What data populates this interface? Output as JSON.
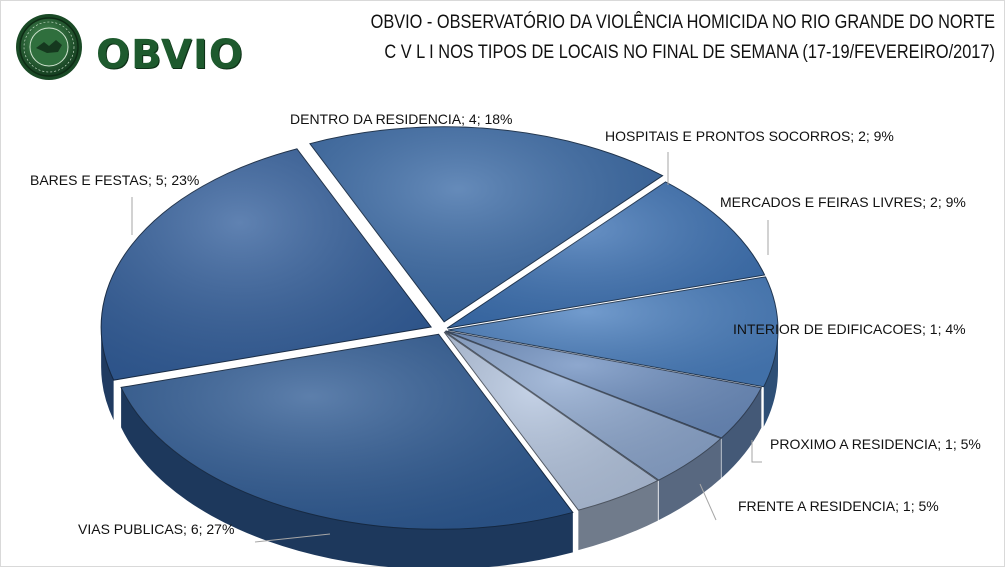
{
  "header": {
    "logo_text": "OBVIO",
    "title_line1": "OBVIO - OBSERVATÓRIO DA VIOLÊNCIA HOMICIDA NO RIO GRANDE DO NORTE",
    "title_line2": "C V L I   NOS TIPOS DE LOCAIS NO FINAL DE SEMANA (17-19/FEVEREIRO/2017)"
  },
  "chart_data": {
    "type": "pie",
    "title": "C V L I   NOS TIPOS DE LOCAIS NO FINAL DE SEMANA (17-19/FEVEREIRO/2017)",
    "slices": [
      {
        "label": "DENTRO DA RESIDENCIA",
        "value": 4,
        "percent": 18,
        "display": "DENTRO DA RESIDENCIA; 4; 18%",
        "color": "#3a6aa6"
      },
      {
        "label": "HOSPITAIS E PRONTOS SOCORROS",
        "value": 2,
        "percent": 9,
        "display": "HOSPITAIS E PRONTOS SOCORROS; 2; 9%",
        "color": "#3d72b4"
      },
      {
        "label": "MERCADOS E FEIRAS LIVRES",
        "value": 2,
        "percent": 9,
        "display": "MERCADOS E FEIRAS LIVRES; 2; 9%",
        "color": "#4a7fbf"
      },
      {
        "label": "INTERIOR DE EDIFICACOES",
        "value": 1,
        "percent": 4,
        "display": "INTERIOR DE EDIFICACOES; 1; 4%",
        "color": "#6e8fc0"
      },
      {
        "label": "PROXIMO A RESIDENCIA",
        "value": 1,
        "percent": 5,
        "display": "PROXIMO A RESIDENCIA; 1; 5%",
        "color": "#8ea8cf"
      },
      {
        "label": "FRENTE A RESIDENCIA",
        "value": 1,
        "percent": 5,
        "display": "FRENTE A RESIDENCIA; 1; 5%",
        "color": "#b5c6e0"
      },
      {
        "label": "VIAS PUBLICAS",
        "value": 6,
        "percent": 27,
        "display": "VIAS PUBLICAS; 6; 27%",
        "color": "#2f5b94"
      },
      {
        "label": "BARES E FESTAS",
        "value": 5,
        "percent": 23,
        "display": "BARES E FESTAS; 5; 23%",
        "color": "#335f9c"
      }
    ]
  }
}
